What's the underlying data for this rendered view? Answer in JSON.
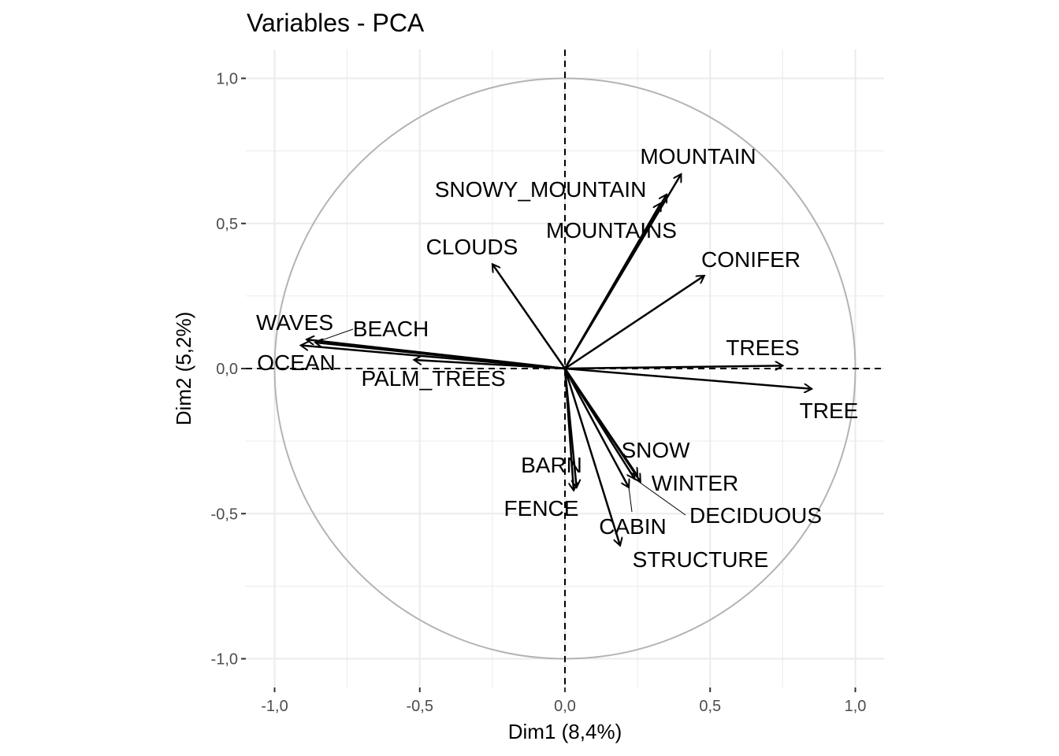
{
  "chart_data": {
    "type": "scatter",
    "subtype": "pca-variable-correlation-circle",
    "title": "Variables - PCA",
    "xlabel": "Dim1 (8,4%)",
    "ylabel": "Dim2 (5,2%)",
    "xlim": [
      -1.1,
      1.1
    ],
    "ylim": [
      -1.1,
      1.1
    ],
    "xticks": [
      -1.0,
      -0.5,
      0.0,
      0.5,
      1.0
    ],
    "xtick_labels": [
      "-1,0",
      "-0,5",
      "0,0",
      "0,5",
      "1,0"
    ],
    "yticks": [
      -1.0,
      -0.5,
      0.0,
      0.5,
      1.0
    ],
    "ytick_labels": [
      "-1,0",
      "-0,5",
      "0,0",
      "0,5",
      "1,0"
    ],
    "grid": true,
    "unit_circle": true,
    "colors": {
      "grid": "#ebebeb",
      "circle": "#b3b3b3",
      "arrow": "#000000",
      "refline": "#000000"
    },
    "variables": [
      {
        "name": "MOUNTAIN",
        "x": 0.4,
        "y": 0.67
      },
      {
        "name": "SNOWY_MOUNTAIN",
        "x": 0.35,
        "y": 0.6
      },
      {
        "name": "MOUNTAINS",
        "x": 0.33,
        "y": 0.57
      },
      {
        "name": "CLOUDS",
        "x": -0.25,
        "y": 0.36
      },
      {
        "name": "CONIFER",
        "x": 0.48,
        "y": 0.32
      },
      {
        "name": "WAVES",
        "x": -0.89,
        "y": 0.1
      },
      {
        "name": "BEACH",
        "x": -0.86,
        "y": 0.09
      },
      {
        "name": "OCEAN",
        "x": -0.91,
        "y": 0.08
      },
      {
        "name": "PALM_TREES",
        "x": -0.52,
        "y": 0.03
      },
      {
        "name": "TREES",
        "x": 0.75,
        "y": 0.01
      },
      {
        "name": "TREE",
        "x": 0.85,
        "y": -0.07
      },
      {
        "name": "SNOW",
        "x": 0.25,
        "y": -0.37
      },
      {
        "name": "WINTER",
        "x": 0.26,
        "y": -0.39
      },
      {
        "name": "DECIDUOUS",
        "x": 0.24,
        "y": -0.38
      },
      {
        "name": "CABIN",
        "x": 0.22,
        "y": -0.41
      },
      {
        "name": "BARN",
        "x": 0.04,
        "y": -0.41
      },
      {
        "name": "FENCE",
        "x": 0.03,
        "y": -0.42
      },
      {
        "name": "STRUCTURE",
        "x": 0.19,
        "y": -0.61
      }
    ]
  }
}
